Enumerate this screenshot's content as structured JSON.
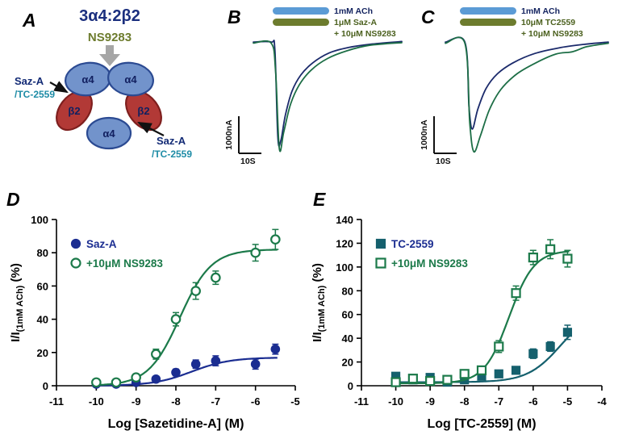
{
  "panels": {
    "a": "A",
    "b": "B",
    "c": "C",
    "d": "D",
    "e": "E"
  },
  "panel_a": {
    "title": "3α4:2β2",
    "modulator_label": "NS9283",
    "left_site_label": {
      "line1": "Saz-A",
      "line2": "/TC-2559"
    },
    "right_site_label": {
      "line1": "Saz-A",
      "line2": "/TC-2559"
    },
    "subunits": [
      {
        "label": "α4"
      },
      {
        "label": "α4"
      },
      {
        "label": "β2"
      },
      {
        "label": "β2"
      },
      {
        "label": "α4"
      }
    ],
    "colors": {
      "alpha_fill": "#7293cb",
      "alpha_stroke": "#2b4a92",
      "beta_fill": "#b23936",
      "beta_stroke": "#7e1f1e",
      "gray_arrow": "#a6a6a6",
      "title_navy": "#1b2f7e",
      "ns9283_olive": "#6d7c2e",
      "teal_label": "#1e8ca6"
    }
  },
  "panel_b": {
    "legend": [
      {
        "label": "1mM ACh",
        "color": "#5b9bd5"
      },
      {
        "label": "1μM Saz-A",
        "sublabel": "+ 10μM NS9283",
        "color": "#6d7c2e"
      }
    ],
    "scale": {
      "v": "1000nA",
      "h": "10S"
    },
    "traces": [
      {
        "name": "1mM ACh",
        "color": "#1b2a6b",
        "points": [
          [
            0,
            0.03
          ],
          [
            0.12,
            0.03
          ],
          [
            0.145,
            0.1
          ],
          [
            0.165,
            0.9
          ],
          [
            0.185,
            0.93
          ],
          [
            0.215,
            0.7
          ],
          [
            0.26,
            0.48
          ],
          [
            0.32,
            0.33
          ],
          [
            0.4,
            0.22
          ],
          [
            0.51,
            0.13
          ],
          [
            0.64,
            0.08
          ],
          [
            0.79,
            0.05
          ],
          [
            1,
            0.025
          ]
        ]
      },
      {
        "name": "1μM Saz-A + 10μM NS9283",
        "color": "#1d6e46",
        "points": [
          [
            0,
            0.04
          ],
          [
            0.12,
            0.04
          ],
          [
            0.15,
            0.3
          ],
          [
            0.175,
            1.0
          ],
          [
            0.205,
            0.85
          ],
          [
            0.25,
            0.6
          ],
          [
            0.31,
            0.42
          ],
          [
            0.39,
            0.285
          ],
          [
            0.5,
            0.18
          ],
          [
            0.63,
            0.11
          ],
          [
            0.78,
            0.06
          ],
          [
            1,
            0.035
          ]
        ]
      }
    ]
  },
  "panel_c": {
    "legend": [
      {
        "label": "1mM ACh",
        "color": "#5b9bd5"
      },
      {
        "label": "10μM TC2559",
        "sublabel": "+ 10μM NS9283",
        "color": "#6d7c2e"
      }
    ],
    "scale": {
      "v": "1000nA",
      "h": "10S"
    },
    "traces": [
      {
        "name": "1mM ACh",
        "color": "#1b2a6b",
        "points": [
          [
            0,
            0.03
          ],
          [
            0.12,
            0.03
          ],
          [
            0.145,
            0.6
          ],
          [
            0.165,
            0.8
          ],
          [
            0.2,
            0.62
          ],
          [
            0.25,
            0.44
          ],
          [
            0.32,
            0.31
          ],
          [
            0.42,
            0.21
          ],
          [
            0.55,
            0.13
          ],
          [
            0.7,
            0.08
          ],
          [
            0.85,
            0.05
          ],
          [
            1,
            0.03
          ]
        ]
      },
      {
        "name": "10μM TC2559 + 10μM NS9283",
        "color": "#1d6e46",
        "points": [
          [
            0,
            0.04
          ],
          [
            0.12,
            0.04
          ],
          [
            0.15,
            0.75
          ],
          [
            0.175,
            1.0
          ],
          [
            0.215,
            0.86
          ],
          [
            0.27,
            0.63
          ],
          [
            0.34,
            0.45
          ],
          [
            0.44,
            0.31
          ],
          [
            0.56,
            0.21
          ],
          [
            0.68,
            0.135
          ],
          [
            0.78,
            0.115
          ],
          [
            0.87,
            0.07
          ],
          [
            1,
            0.04
          ]
        ]
      }
    ]
  },
  "chart_data": [
    {
      "id": "d",
      "type": "scatter",
      "title": "",
      "xlabel": "Log [Sazetidine-A] (M)",
      "ylabel": "I/I(1mM ACh) (%)",
      "ylabel_parts": [
        {
          "t": "I/I"
        },
        {
          "t": "(1mM ACh)",
          "sub": true
        },
        {
          "t": " (%)"
        }
      ],
      "xlim": [
        -11,
        -5
      ],
      "ylim": [
        0,
        100
      ],
      "xticks": [
        -11,
        -10,
        -9,
        -8,
        -7,
        -6,
        -5
      ],
      "yticks": [
        0,
        20,
        40,
        60,
        80,
        100
      ],
      "grid": false,
      "legend_position": "top-left",
      "series": [
        {
          "name": "Saz-A",
          "marker": "circle",
          "open": false,
          "color": "#1b2d91",
          "x": [
            -10,
            -9.5,
            -9,
            -8.5,
            -8,
            -7.5,
            -7,
            -6,
            -5.5
          ],
          "y": [
            1,
            1,
            2,
            4,
            8,
            13,
            15,
            13,
            22
          ],
          "err": [
            0.5,
            0.5,
            1,
            1.5,
            2,
            2.5,
            3,
            3,
            3
          ],
          "fit": {
            "bottom": 0,
            "top": 17,
            "logec50": -7.6,
            "hill": 0.9,
            "from": -10,
            "to": -5.45
          }
        },
        {
          "name": "+10μM NS9283",
          "marker": "circle",
          "open": true,
          "color": "#1c7a4a",
          "x": [
            -10,
            -9.5,
            -9,
            -8.5,
            -8,
            -7.5,
            -7,
            -6,
            -5.5
          ],
          "y": [
            2,
            2,
            5,
            19,
            40,
            57,
            65,
            80,
            88
          ],
          "err": [
            1,
            1,
            2,
            3,
            4,
            5,
            4,
            5,
            6
          ],
          "fit": {
            "bottom": 0,
            "top": 82,
            "logec50": -7.9,
            "hill": 1.1,
            "from": -10,
            "to": -5.45
          }
        }
      ]
    },
    {
      "id": "e",
      "type": "scatter",
      "title": "",
      "xlabel": "Log [TC-2559] (M)",
      "ylabel": "I/I(1mM ACh) (%)",
      "ylabel_parts": [
        {
          "t": "I/I"
        },
        {
          "t": "(1mM ACh)",
          "sub": true
        },
        {
          "t": " (%)"
        }
      ],
      "xlim": [
        -11,
        -4
      ],
      "ylim": [
        0,
        140
      ],
      "xticks": [
        -11,
        -10,
        -9,
        -8,
        -7,
        -6,
        -5,
        -4
      ],
      "yticks": [
        0,
        20,
        40,
        60,
        80,
        100,
        120,
        140
      ],
      "grid": false,
      "legend_position": "top-left",
      "series": [
        {
          "name": "TC-2559",
          "marker": "square",
          "open": false,
          "color": "#15606d",
          "label_color": "#1b2d91",
          "x": [
            -10,
            -9.5,
            -9,
            -8.5,
            -8,
            -7.5,
            -7,
            -6.5,
            -6,
            -5.5,
            -5
          ],
          "y": [
            8,
            5,
            7,
            3,
            5,
            8,
            10,
            13,
            27,
            33,
            45
          ],
          "err": [
            3,
            2,
            2,
            1,
            2,
            2,
            3,
            3,
            4,
            4,
            6
          ],
          "fit": {
            "bottom": 3,
            "top": 65,
            "logec50": -5.2,
            "hill": 0.9,
            "from": -10,
            "to": -4.95
          }
        },
        {
          "name": "+10μM NS9283",
          "marker": "square",
          "open": true,
          "color": "#1c7a4a",
          "x": [
            -10,
            -9.5,
            -9,
            -8.5,
            -8,
            -7.5,
            -7,
            -6.5,
            -6,
            -5.5,
            -5
          ],
          "y": [
            3,
            6,
            4,
            5,
            10,
            13,
            33,
            78,
            108,
            115,
            107
          ],
          "err": [
            1,
            2,
            2,
            2,
            3,
            3,
            5,
            6,
            6,
            8,
            7
          ],
          "fit": {
            "bottom": 2,
            "top": 114,
            "logec50": -6.7,
            "hill": 1.2,
            "from": -10,
            "to": -4.95
          }
        }
      ]
    }
  ]
}
